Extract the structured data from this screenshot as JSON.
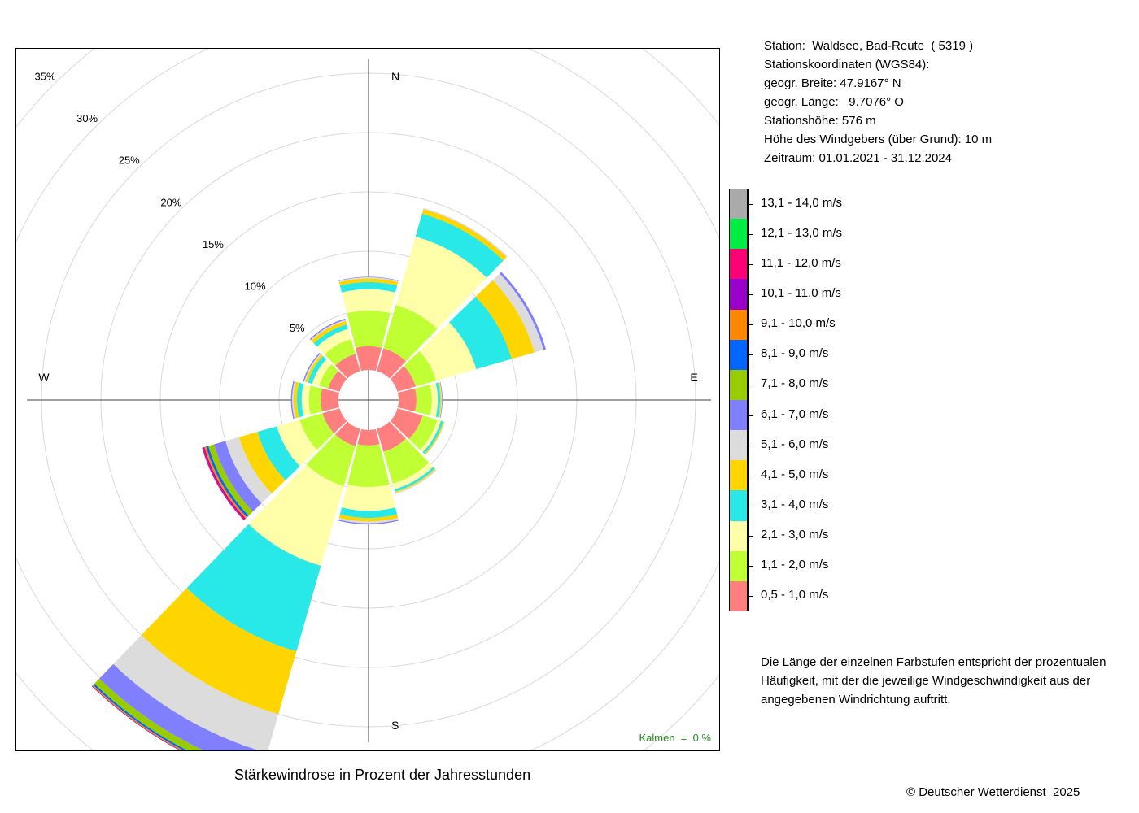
{
  "chart_data": {
    "type": "windrose",
    "title": "Stärkewindrose in Prozent der Jahresstunden",
    "ring_labels": [
      "5%",
      "10%",
      "15%",
      "20%",
      "25%",
      "30%",
      "35%"
    ],
    "ring_values": [
      5,
      10,
      15,
      20,
      25,
      30,
      35
    ],
    "direction_labels": {
      "n": "N",
      "e": "E",
      "s": "S",
      "w": "W"
    },
    "calm_label": "Kalmen  =  0 %",
    "calm_percent": 0,
    "bins": [
      {
        "label": "0,5 - 1,0 m/s",
        "color": "#ff7f7f"
      },
      {
        "label": "1,1 - 2,0 m/s",
        "color": "#c0ff33"
      },
      {
        "label": "2,1 - 3,0 m/s",
        "color": "#ffffaa"
      },
      {
        "label": "3,1 - 4,0 m/s",
        "color": "#28e8e8"
      },
      {
        "label": "4,1 - 5,0 m/s",
        "color": "#ffd500"
      },
      {
        "label": "5,1 - 6,0 m/s",
        "color": "#dcdcdc"
      },
      {
        "label": "6,1 - 7,0 m/s",
        "color": "#8080ff"
      },
      {
        "label": "7,1 - 8,0 m/s",
        "color": "#99cc00"
      },
      {
        "label": "8,1 - 9,0 m/s",
        "color": "#0066ff"
      },
      {
        "label": "9,1 - 10,0 m/s",
        "color": "#ff8800"
      },
      {
        "label": "10,1 - 11,0 m/s",
        "color": "#9900cc"
      },
      {
        "label": "11,1 - 12,0 m/s",
        "color": "#ff0077"
      },
      {
        "label": "12,1 - 13,0 m/s",
        "color": "#00ee44"
      },
      {
        "label": "13,1 - 14,0 m/s",
        "color": "#aaaaaa"
      }
    ],
    "sectors": [
      {
        "direction_deg": 0,
        "values": [
          2.0,
          3.0,
          1.8,
          0.6,
          0.3,
          0.1,
          0.05
        ]
      },
      {
        "direction_deg": 30,
        "values": [
          2.0,
          3.8,
          6.0,
          2.0,
          0.4,
          0.1
        ]
      },
      {
        "direction_deg": 60,
        "values": [
          1.6,
          1.8,
          3.5,
          3.1,
          2.0,
          0.8,
          0.2
        ]
      },
      {
        "direction_deg": 90,
        "values": [
          1.5,
          1.3,
          0.5,
          0.2,
          0.1,
          0.05,
          0.05
        ]
      },
      {
        "direction_deg": 120,
        "values": [
          2.2,
          1.3,
          0.3,
          0.2,
          0.1,
          0.05
        ]
      },
      {
        "direction_deg": 150,
        "values": [
          2.0,
          2.8,
          0.5,
          0.2,
          0.1,
          0.1
        ]
      },
      {
        "direction_deg": 180,
        "values": [
          1.3,
          3.5,
          2.0,
          0.6,
          0.3,
          0.15,
          0.1
        ]
      },
      {
        "direction_deg": 210,
        "values": [
          1.5,
          3.5,
          7.0,
          7.5,
          5.5,
          3.4,
          1.7,
          0.6,
          0.15,
          0.1,
          0.05
        ]
      },
      {
        "direction_deg": 240,
        "values": [
          1.5,
          2.0,
          2.0,
          1.7,
          1.6,
          1.2,
          1.0,
          0.5,
          0.2,
          0.15,
          0.1,
          0.1
        ]
      },
      {
        "direction_deg": 270,
        "values": [
          1.5,
          1.0,
          0.6,
          0.4,
          0.3,
          0.1,
          0.1
        ]
      },
      {
        "direction_deg": 300,
        "values": [
          1.0,
          0.8,
          0.6,
          0.4,
          0.2,
          0.1,
          0.1
        ]
      },
      {
        "direction_deg": 330,
        "values": [
          1.5,
          1.3,
          0.9,
          0.4,
          0.3,
          0.1,
          0.1
        ]
      }
    ]
  },
  "station": {
    "lines": [
      "Station:  Waldsee, Bad-Reute  ( 5319 )",
      "Stationskoordinaten (WGS84):",
      "geogr. Breite: 47.9167° N",
      "geogr. Länge:   9.7076° O",
      "Stationshöhe: 576 m",
      "Höhe des Windgebers (über Grund): 10 m",
      "Zeitraum: 01.01.2021 - 31.12.2024"
    ]
  },
  "note": "Die Länge der einzelnen Farbstufen entspricht der prozentualen Häufigkeit, mit der die jeweilige Windgeschwindigkeit aus der angegebenen Windrichtung auftritt.",
  "copyright": "© Deutscher Wetterdienst  2025"
}
